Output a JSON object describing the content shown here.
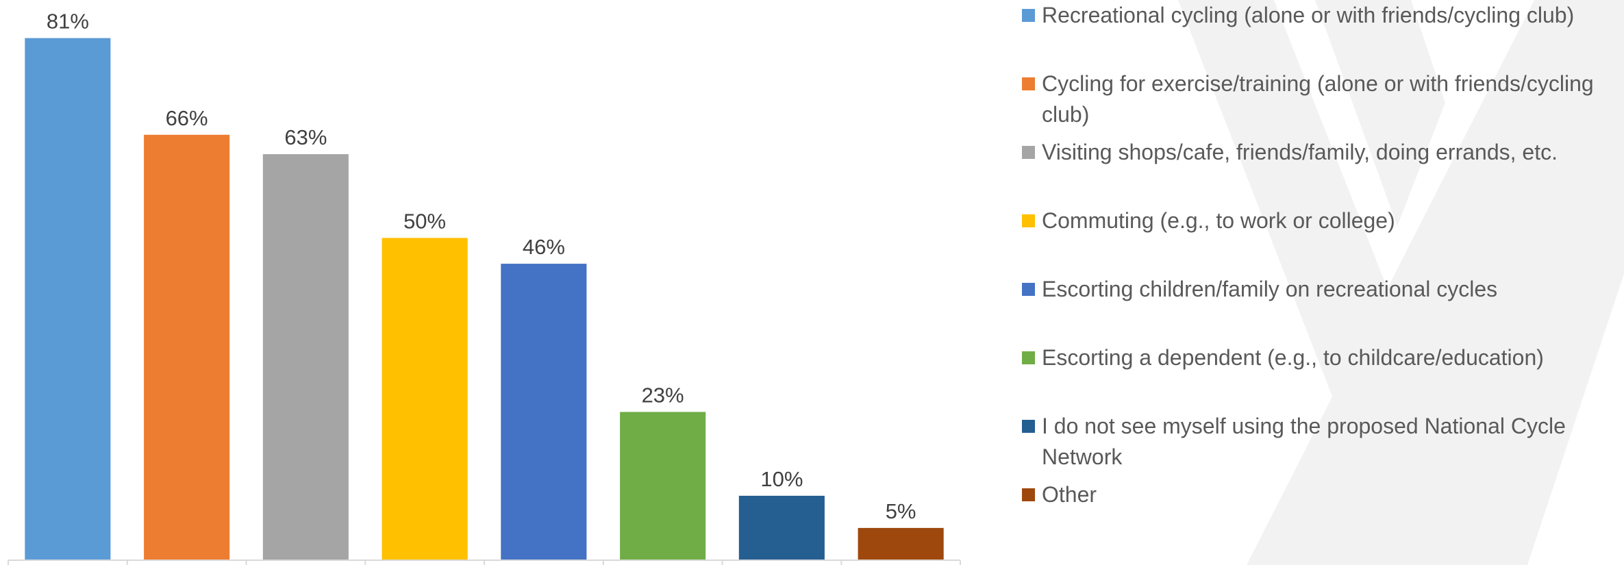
{
  "chart_data": {
    "type": "bar",
    "title": "",
    "xlabel": "",
    "ylabel": "",
    "ylim": [
      0,
      85
    ],
    "grid": false,
    "legend_position": "right",
    "categories": [
      "Recreational cycling (alone or with friends/cycling club)",
      "Cycling for exercise/training (alone or with friends/cycling club)",
      "Visiting shops/cafe, friends/family, doing errands, etc.",
      "Commuting (e.g., to work or college)",
      "Escorting children/family on recreational cycles",
      "Escorting a dependent (e.g., to childcare/education)",
      "I do not see myself using the proposed National Cycle Network",
      "Other"
    ],
    "values": [
      81,
      66,
      63,
      50,
      46,
      23,
      10,
      5
    ],
    "data_labels": [
      "81%",
      "66%",
      "63%",
      "50%",
      "46%",
      "23%",
      "10%",
      "5%"
    ],
    "colors": [
      "#5B9BD5",
      "#ED7D31",
      "#A5A5A5",
      "#FFC000",
      "#4472C4",
      "#70AD47",
      "#255E91",
      "#9E480E"
    ]
  }
}
